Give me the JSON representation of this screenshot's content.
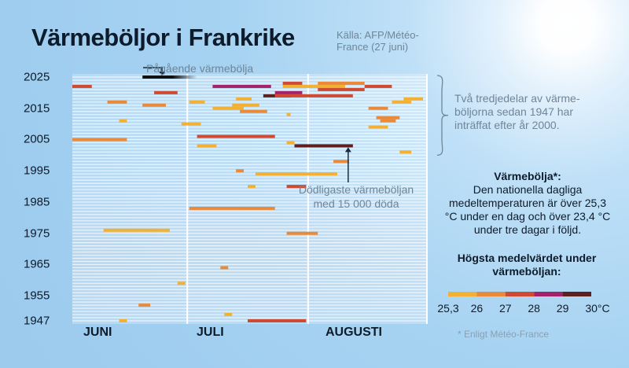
{
  "title": "Värmeböljor i Frankrike",
  "source": "Källa: AFP/Météo-France (27 juni)",
  "annotations": {
    "ongoing": "Pågående värmebölja",
    "deadliest": "Dödligaste värmeböljan med 15 000 döda",
    "two_thirds": "Två tredjedelar av värme-böljorna sedan 1947 har inträffat efter år 2000."
  },
  "definition": {
    "title": "Värmebölja*:",
    "text": "Den nationella dagliga medeltemperaturen är över 25,3 °C under en dag och över 23,4 °C under tre dagar i följd."
  },
  "legend": {
    "title": "Högsta medelvärdet under värmeböljan:",
    "ticks": [
      "25,3",
      "26",
      "27",
      "28",
      "29",
      "30°C"
    ],
    "colors": [
      "#f2b134",
      "#e88a3a",
      "#cf4a33",
      "#a3236a",
      "#5e1f1f"
    ]
  },
  "footnote": "* Enligt Météo-France",
  "chart_data": {
    "type": "timeline",
    "title": "Värmeböljor i Frankrike",
    "x_axis": {
      "unit": "day of summer (1 = 1 June)",
      "range": [
        1,
        92
      ],
      "month_labels": [
        "JUNI",
        "JULI",
        "AUGUSTI"
      ]
    },
    "y_axis": {
      "unit": "year",
      "range": [
        1947,
        2025
      ],
      "tick_labels": [
        "2025",
        "2015",
        "2005",
        "1995",
        "1985",
        "1975",
        "1965",
        "1955",
        "1947"
      ]
    },
    "color_bins": [
      "25,3-26",
      "26-27",
      "27-28",
      "28-29",
      "29-30"
    ],
    "waves": [
      {
        "year": 2025,
        "start": 19,
        "end": 33,
        "bin": -1,
        "ongoing": true
      },
      {
        "year": 2023,
        "start": 55,
        "end": 60,
        "bin": 2
      },
      {
        "year": 2023,
        "start": 64,
        "end": 76,
        "bin": 1
      },
      {
        "year": 2022,
        "start": 76,
        "end": 83,
        "bin": 2
      },
      {
        "year": 2022,
        "start": 1,
        "end": 6,
        "bin": 2
      },
      {
        "year": 2022,
        "start": 37,
        "end": 52,
        "bin": 3
      },
      {
        "year": 2022,
        "start": 55,
        "end": 71,
        "bin": 0
      },
      {
        "year": 2021,
        "start": 64,
        "end": 76,
        "bin": 2
      },
      {
        "year": 2020,
        "start": 53,
        "end": 60,
        "bin": 3
      },
      {
        "year": 2020,
        "start": 22,
        "end": 28,
        "bin": 2
      },
      {
        "year": 2019,
        "start": 50,
        "end": 57,
        "bin": 4
      },
      {
        "year": 2019,
        "start": 53,
        "end": 73,
        "bin": 2
      },
      {
        "year": 2018,
        "start": 43,
        "end": 47,
        "bin": 0
      },
      {
        "year": 2018,
        "start": 86,
        "end": 91,
        "bin": 0
      },
      {
        "year": 2017,
        "start": 10,
        "end": 15,
        "bin": 1
      },
      {
        "year": 2017,
        "start": 31,
        "end": 35,
        "bin": 0
      },
      {
        "year": 2017,
        "start": 83,
        "end": 88,
        "bin": 0
      },
      {
        "year": 2016,
        "start": 19,
        "end": 25,
        "bin": 1
      },
      {
        "year": 2016,
        "start": 42,
        "end": 49,
        "bin": 0
      },
      {
        "year": 2015,
        "start": 37,
        "end": 45,
        "bin": 0
      },
      {
        "year": 2015,
        "start": 77,
        "end": 82,
        "bin": 1
      },
      {
        "year": 2014,
        "start": 44,
        "end": 51,
        "bin": 1
      },
      {
        "year": 2013,
        "start": 56,
        "end": 57,
        "bin": 0
      },
      {
        "year": 2012,
        "start": 79,
        "end": 85,
        "bin": 1
      },
      {
        "year": 2011,
        "start": 13,
        "end": 15,
        "bin": 0
      },
      {
        "year": 2011,
        "start": 80,
        "end": 84,
        "bin": 1
      },
      {
        "year": 2010,
        "start": 29,
        "end": 34,
        "bin": 0
      },
      {
        "year": 2009,
        "start": 77,
        "end": 82,
        "bin": 0
      },
      {
        "year": 2006,
        "start": 33,
        "end": 53,
        "bin": 2
      },
      {
        "year": 2005,
        "start": 1,
        "end": 15,
        "bin": 1
      },
      {
        "year": 2004,
        "start": 56,
        "end": 58,
        "bin": 0
      },
      {
        "year": 2003,
        "start": 33,
        "end": 38,
        "bin": 0
      },
      {
        "year": 2003,
        "start": 58,
        "end": 73,
        "bin": 4
      },
      {
        "year": 2001,
        "start": 85,
        "end": 88,
        "bin": 0
      },
      {
        "year": 1998,
        "start": 68,
        "end": 72,
        "bin": 1
      },
      {
        "year": 1995,
        "start": 43,
        "end": 45,
        "bin": 1
      },
      {
        "year": 1994,
        "start": 48,
        "end": 56,
        "bin": 0
      },
      {
        "year": 1994,
        "start": 56,
        "end": 63,
        "bin": 0
      },
      {
        "year": 1994,
        "start": 63,
        "end": 69,
        "bin": 0
      },
      {
        "year": 1990,
        "start": 46,
        "end": 48,
        "bin": 0
      },
      {
        "year": 1990,
        "start": 56,
        "end": 61,
        "bin": 2
      },
      {
        "year": 1983,
        "start": 31,
        "end": 53,
        "bin": 1
      },
      {
        "year": 1976,
        "start": 9,
        "end": 26,
        "bin": 0
      },
      {
        "year": 1975,
        "start": 56,
        "end": 64,
        "bin": 1
      },
      {
        "year": 1964,
        "start": 39,
        "end": 41,
        "bin": 1
      },
      {
        "year": 1959,
        "start": 28,
        "end": 30,
        "bin": 0
      },
      {
        "year": 1952,
        "start": 18,
        "end": 21,
        "bin": 1
      },
      {
        "year": 1949,
        "start": 40,
        "end": 42,
        "bin": 0
      },
      {
        "year": 1947,
        "start": 13,
        "end": 15,
        "bin": 0
      },
      {
        "year": 1947,
        "start": 46,
        "end": 61,
        "bin": 2
      }
    ]
  }
}
